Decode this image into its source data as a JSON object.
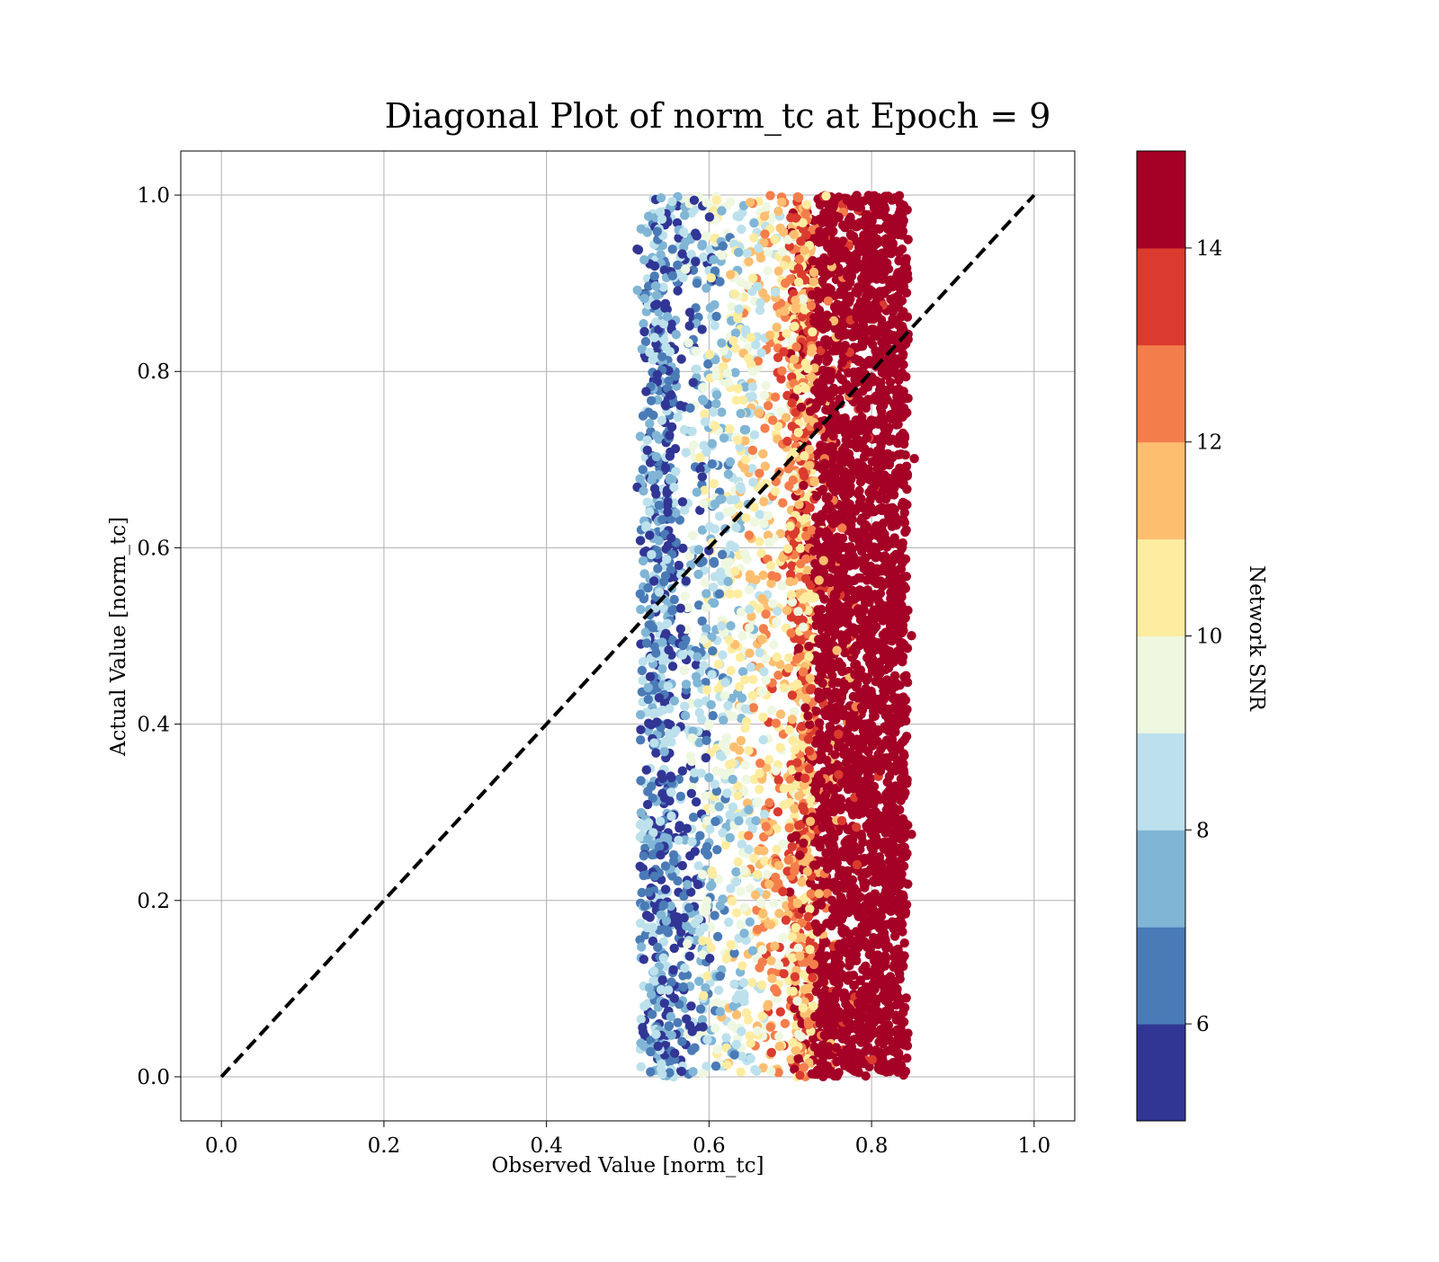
{
  "chart_data": {
    "type": "scatter",
    "title": "Diagonal Plot of norm_tc at Epoch = 9",
    "xlabel": "Observed Value [norm_tc]",
    "ylabel": "Actual Value [norm_tc]",
    "xlim": [
      -0.05,
      1.05
    ],
    "ylim": [
      -0.05,
      1.05
    ],
    "xticks": [
      0.0,
      0.2,
      0.4,
      0.6,
      0.8,
      1.0
    ],
    "yticks": [
      0.0,
      0.2,
      0.4,
      0.6,
      0.8,
      1.0
    ],
    "xtick_labels": [
      "0.0",
      "0.2",
      "0.4",
      "0.6",
      "0.8",
      "1.0"
    ],
    "ytick_labels": [
      "0.0",
      "0.2",
      "0.4",
      "0.6",
      "0.8",
      "1.0"
    ],
    "grid": true,
    "reference_line": {
      "from": [
        0,
        0
      ],
      "to": [
        1,
        1
      ],
      "style": "dashed",
      "color": "#000000"
    },
    "point_distribution": {
      "x_range": [
        0.51,
        0.86
      ],
      "y_range": [
        0.0,
        1.0
      ],
      "color_variable": "Network SNR",
      "trend": "low SNR (blue) points cluster near x = 0.52–0.56, SNR rises with observed value; high SNR (dark red) dominates x = 0.70–0.84"
    },
    "colorbar": {
      "label": "Network SNR",
      "range": [
        5,
        15
      ],
      "ticks": [
        6,
        8,
        10,
        12,
        14
      ],
      "tick_labels": [
        "6",
        "8",
        "10",
        "12",
        "14"
      ],
      "bins": [
        {
          "from": 5,
          "to": 6,
          "color": "#313695"
        },
        {
          "from": 6,
          "to": 7,
          "color": "#4a7bb7"
        },
        {
          "from": 7,
          "to": 8,
          "color": "#80b5d6"
        },
        {
          "from": 8,
          "to": 9,
          "color": "#bce1ec"
        },
        {
          "from": 9,
          "to": 10,
          "color": "#eef7e0"
        },
        {
          "from": 10,
          "to": 11,
          "color": "#feeca0"
        },
        {
          "from": 11,
          "to": 12,
          "color": "#fdbe70"
        },
        {
          "from": 12,
          "to": 13,
          "color": "#f47e4b"
        },
        {
          "from": 13,
          "to": 14,
          "color": "#da3b2e"
        },
        {
          "from": 14,
          "to": 15,
          "color": "#a50026"
        }
      ]
    }
  }
}
